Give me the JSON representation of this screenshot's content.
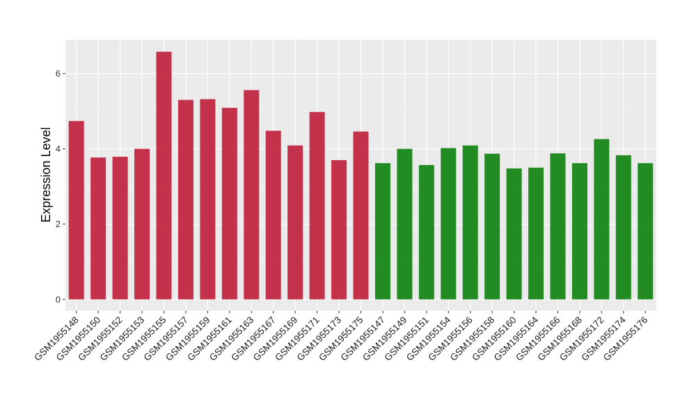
{
  "chart_data": {
    "type": "bar",
    "ylabel": "Expression Level",
    "xlabel": "",
    "ylim": [
      -0.3,
      6.9
    ],
    "yticks": [
      0,
      2,
      4,
      6
    ],
    "grid": true,
    "background": "#EBEBEB",
    "colors": {
      "group_a": "#C3314A",
      "group_b": "#228B22"
    },
    "categories": [
      "GSM1955148",
      "GSM1955150",
      "GSM1955152",
      "GSM1955153",
      "GSM1955155",
      "GSM1955157",
      "GSM1955159",
      "GSM1955161",
      "GSM1955163",
      "GSM1955167",
      "GSM1955169",
      "GSM1955171",
      "GSM1955173",
      "GSM1955175",
      "GSM1955147",
      "GSM1955149",
      "GSM1955151",
      "GSM1955154",
      "GSM1955156",
      "GSM1955158",
      "GSM1955160",
      "GSM1955164",
      "GSM1955166",
      "GSM1955168",
      "GSM1955172",
      "GSM1955174",
      "GSM1955176"
    ],
    "values": [
      4.74,
      3.77,
      3.79,
      4.0,
      6.58,
      5.3,
      5.32,
      5.09,
      5.56,
      4.48,
      4.09,
      4.98,
      3.7,
      4.46,
      3.62,
      4.0,
      3.57,
      4.02,
      4.09,
      3.87,
      3.48,
      3.5,
      3.88,
      3.62,
      4.26,
      3.83,
      3.62
    ],
    "groups": [
      "a",
      "a",
      "a",
      "a",
      "a",
      "a",
      "a",
      "a",
      "a",
      "a",
      "a",
      "a",
      "a",
      "a",
      "b",
      "b",
      "b",
      "b",
      "b",
      "b",
      "b",
      "b",
      "b",
      "b",
      "b",
      "b",
      "b"
    ]
  }
}
